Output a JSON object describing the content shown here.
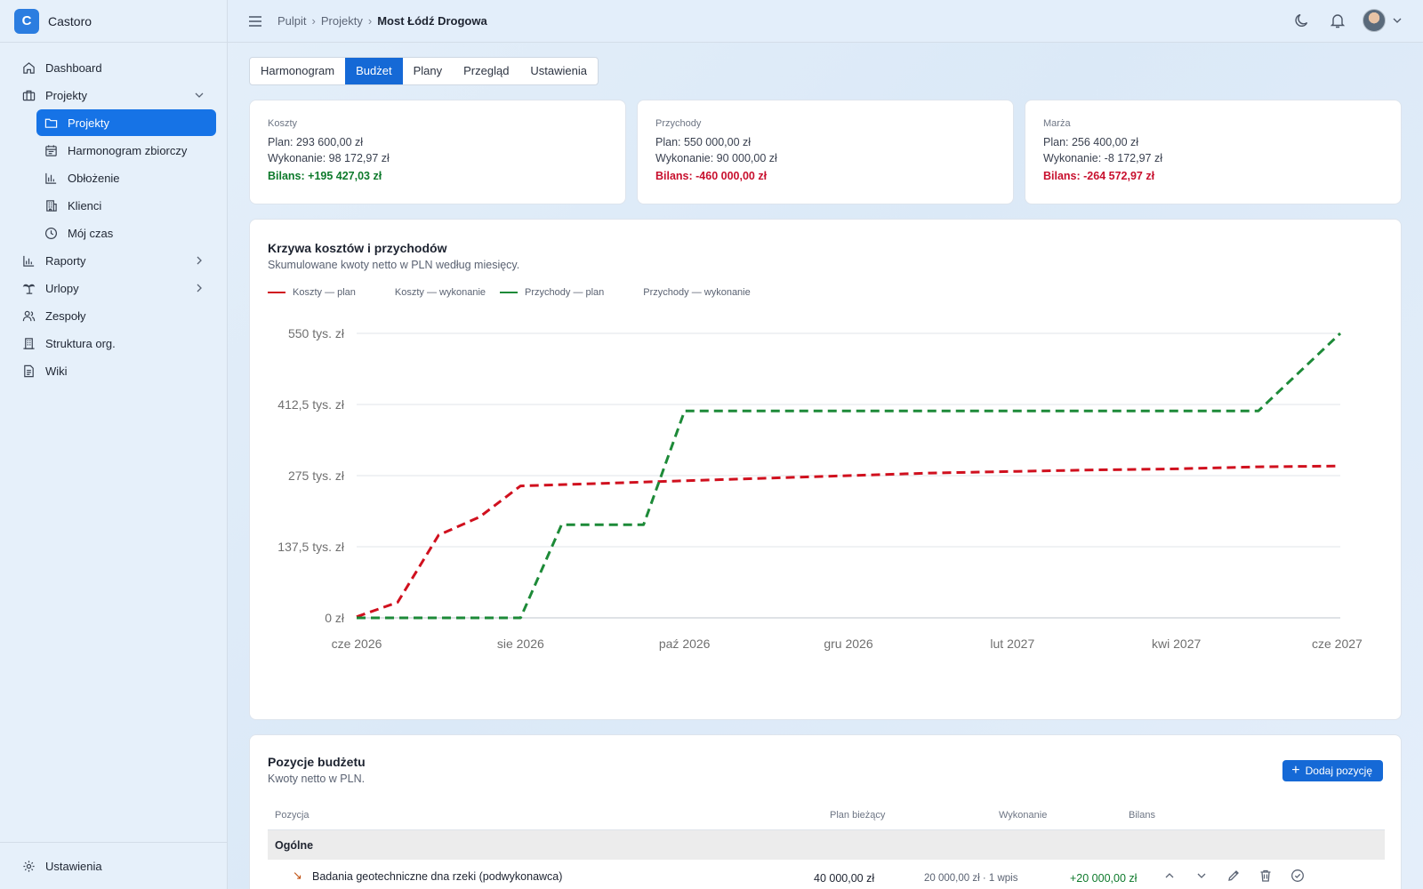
{
  "app": {
    "brand_letter": "C",
    "name": "Castoro"
  },
  "sidebar": {
    "items": [
      {
        "label": "Dashboard"
      },
      {
        "label": "Projekty"
      },
      {
        "label": "Projekty"
      },
      {
        "label": "Harmonogram zbiorczy"
      },
      {
        "label": "Obłożenie"
      },
      {
        "label": "Klienci"
      },
      {
        "label": "Mój czas"
      },
      {
        "label": "Raporty"
      },
      {
        "label": "Urlopy"
      },
      {
        "label": "Zespoły"
      },
      {
        "label": "Struktura org."
      },
      {
        "label": "Wiki"
      }
    ],
    "settings": "Ustawienia"
  },
  "breadcrumb": [
    "Pulpit",
    "Projekty",
    "Most Łódź Drogowa"
  ],
  "tabs": [
    "Harmonogram",
    "Budżet",
    "Plany",
    "Przegląd",
    "Ustawienia"
  ],
  "active_tab": "Budżet",
  "kpis": [
    {
      "label": "Koszty",
      "plan": "Plan: 293 600,00 zł",
      "done": "Wykonanie: 98 172,97 zł",
      "balance": "Bilans: +195 427,03 zł",
      "status": "positive"
    },
    {
      "label": "Przychody",
      "plan": "Plan: 550 000,00 zł",
      "done": "Wykonanie: 90 000,00 zł",
      "balance": "Bilans: -460 000,00 zł",
      "status": "negative"
    },
    {
      "label": "Marża",
      "plan": "Plan: 256 400,00 zł",
      "done": "Wykonanie: -8 172,97 zł",
      "balance": "Bilans: -264 572,97 zł",
      "status": "negative"
    }
  ],
  "chart": {
    "title": "Krzywa kosztów i przychodów",
    "subtitle": "Skumulowane kwoty netto w PLN według miesięcy."
  },
  "chart_data": {
    "type": "line",
    "x": [
      "cze 2026",
      "lip 2026",
      "sie 2026",
      "wrz 2026",
      "paź 2026",
      "lis 2026",
      "gru 2026",
      "sty 2027",
      "lut 2027",
      "mar 2027",
      "kwi 2027",
      "maj 2027",
      "cze 2027"
    ],
    "x_tick_labels": [
      "cze 2026",
      "sie 2026",
      "paź 2026",
      "gru 2026",
      "lut 2027",
      "kwi 2027",
      "cze 2027"
    ],
    "y_tick_labels": [
      "0 zł",
      "137,5 tys. zł",
      "275 tys. zł",
      "412,5 tys. zł",
      "550 tys. zł"
    ],
    "ylim": [
      0,
      550000
    ],
    "grid": true,
    "legend": "top-left",
    "series": [
      {
        "name": "Koszty — plan",
        "color": "#d0101e",
        "style": "dashed",
        "x": [
          0,
          0.5,
          1,
          1.5,
          2,
          3,
          4,
          5,
          6,
          7,
          8,
          9,
          10,
          11,
          12
        ],
        "values": [
          2000,
          30000,
          160000,
          195000,
          255000,
          260000,
          265000,
          270000,
          275000,
          280000,
          283000,
          286000,
          288000,
          292000,
          293600
        ]
      },
      {
        "name": "Koszty — wykonanie",
        "color": "#9aa3b0",
        "style": "none",
        "x": [],
        "values": []
      },
      {
        "name": "Przychody — plan",
        "color": "#1d8a38",
        "style": "dashed",
        "x": [
          0,
          1,
          2,
          2.5,
          3,
          3.5,
          4,
          7,
          8,
          9,
          10,
          11,
          12
        ],
        "values": [
          0,
          0,
          0,
          180000,
          180000,
          180000,
          400000,
          400000,
          400000,
          400000,
          400000,
          400000,
          550000
        ]
      },
      {
        "name": "Przychody — wykonanie",
        "color": "#9aa3b0",
        "style": "none",
        "x": [],
        "values": []
      }
    ]
  },
  "budget": {
    "title": "Pozycje budżetu",
    "subtitle": "Kwoty netto w PLN.",
    "add_label": "Dodaj pozycję",
    "columns": [
      "Pozycja",
      "Plan bieżący",
      "Wykonanie",
      "Bilans"
    ],
    "group": "Ogólne",
    "rows": [
      {
        "name": "Badania geotechniczne dna rzeki (podwykonawca)",
        "plan": "40 000,00 zł",
        "done": "20 000,00 zł · 1 wpis",
        "balance": "+20 000,00 zł"
      }
    ]
  }
}
